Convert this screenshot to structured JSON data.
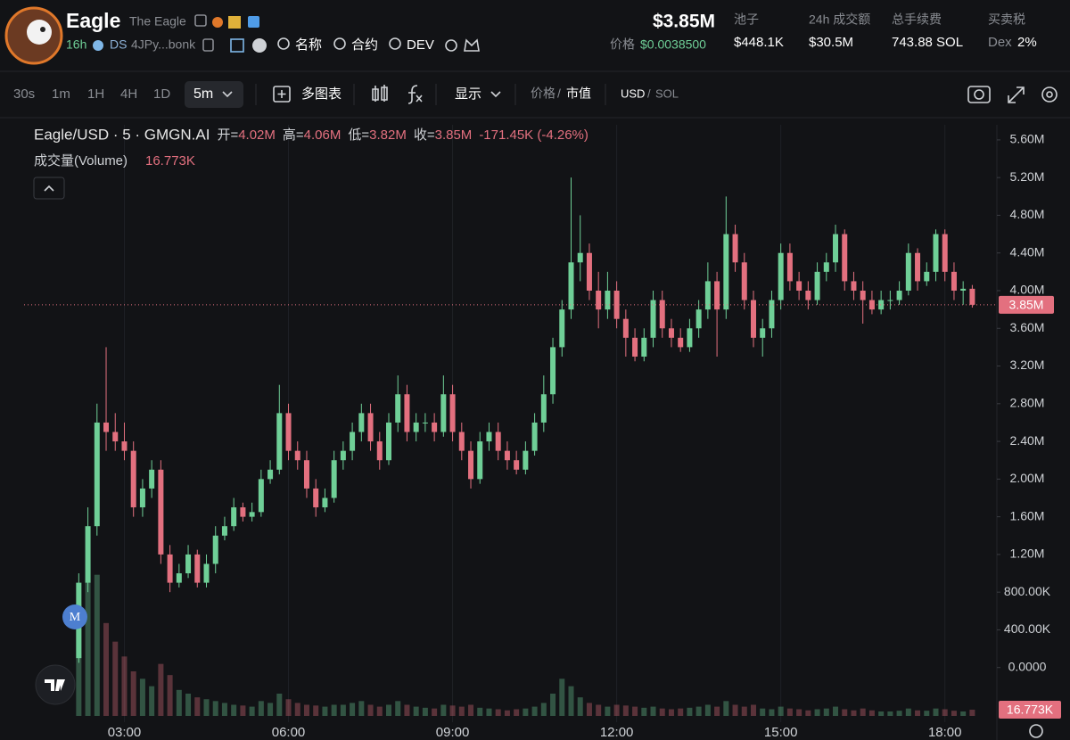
{
  "header": {
    "name": "Eagle",
    "full_name": "The Eagle",
    "age": "16h",
    "dex": "DS",
    "address": "4JPy...bonk",
    "links": [
      "名称",
      "合约",
      "DEV"
    ],
    "market_cap": "$3.85M",
    "price_label": "价格",
    "price_value": "$0.0038500",
    "stats": [
      {
        "label": "池子",
        "value": "$448.1K"
      },
      {
        "label": "24h 成交额",
        "value": "$30.5M"
      },
      {
        "label": "总手续费",
        "value": "743.88 SOL"
      },
      {
        "label": "买卖税",
        "prefix": "Dex",
        "value": "2%"
      }
    ]
  },
  "toolbar": {
    "intervals": [
      "30s",
      "1m",
      "1H",
      "4H",
      "1D"
    ],
    "active_interval": "5m",
    "multi_chart": "多图表",
    "display": "显示",
    "price_toggle": [
      "价格",
      "市值"
    ],
    "currency_toggle": [
      "USD",
      "SOL"
    ],
    "separator": "/"
  },
  "chart_data": {
    "type": "candlestick",
    "symbol": "Eagle/USD · 5 · GMGN.AI",
    "legend": [
      {
        "label": "开=",
        "value": "4.02M"
      },
      {
        "label": "高=",
        "value": "4.06M"
      },
      {
        "label": "低=",
        "value": "3.82M"
      },
      {
        "label": "收=",
        "value": "3.85M"
      }
    ],
    "change": "-171.45K (-4.26%)",
    "volume_title": "成交量(Volume)",
    "volume_value_label": "16.773K",
    "price_badge": "3.85M",
    "marker": "M",
    "colors": {
      "up": "#6fcf97",
      "down": "#e3707f"
    },
    "xgrid": true,
    "xlim": [
      70,
      1137
    ],
    "xticks": [
      {
        "value": 180,
        "label": "03:00"
      },
      {
        "value": 360,
        "label": "06:00"
      },
      {
        "value": 540,
        "label": "09:00"
      },
      {
        "value": 720,
        "label": "12:00"
      },
      {
        "value": 900,
        "label": "15:00"
      },
      {
        "value": 1080,
        "label": "18:00"
      }
    ],
    "ylim": [
      -0.58,
      5.76
    ],
    "yticks": [
      {
        "value": 0,
        "label": "0.0000"
      },
      {
        "value": 0.4,
        "label": "400.00K"
      },
      {
        "value": 0.8,
        "label": "800.00K"
      },
      {
        "value": 1.2,
        "label": "1.20M"
      },
      {
        "value": 1.6,
        "label": "1.60M"
      },
      {
        "value": 2.0,
        "label": "2.00M"
      },
      {
        "value": 2.4,
        "label": "2.40M"
      },
      {
        "value": 2.8,
        "label": "2.80M"
      },
      {
        "value": 3.2,
        "label": "3.20M"
      },
      {
        "value": 3.6,
        "label": "3.60M"
      },
      {
        "value": 4.0,
        "label": "4.00M"
      },
      {
        "value": 4.4,
        "label": "4.40M"
      },
      {
        "value": 4.8,
        "label": "4.80M"
      },
      {
        "value": 5.2,
        "label": "5.20M"
      },
      {
        "value": 5.6,
        "label": "5.60M"
      }
    ],
    "y2lim": [
      0,
      600
    ],
    "x": [
      130,
      140,
      150,
      160,
      170,
      180,
      190,
      200,
      210,
      220,
      230,
      240,
      250,
      260,
      270,
      280,
      290,
      300,
      310,
      320,
      330,
      340,
      350,
      360,
      370,
      380,
      390,
      400,
      410,
      420,
      430,
      440,
      450,
      460,
      470,
      480,
      490,
      500,
      510,
      520,
      530,
      540,
      550,
      560,
      570,
      580,
      590,
      600,
      610,
      620,
      630,
      640,
      650,
      660,
      670,
      680,
      690,
      700,
      710,
      720,
      730,
      740,
      750,
      760,
      770,
      780,
      790,
      800,
      810,
      820,
      830,
      840,
      850,
      860,
      870,
      880,
      890,
      900,
      910,
      920,
      930,
      940,
      950,
      960,
      970,
      980,
      990,
      1000,
      1010,
      1020,
      1030,
      1040,
      1050,
      1060,
      1070,
      1080,
      1090,
      1100,
      1110
    ],
    "open": [
      0.1,
      0.9,
      1.5,
      2.6,
      2.5,
      2.4,
      2.3,
      1.7,
      1.9,
      2.1,
      1.2,
      0.9,
      1.0,
      1.2,
      0.9,
      1.1,
      1.4,
      1.5,
      1.7,
      1.6,
      1.65,
      2.0,
      2.1,
      2.7,
      2.3,
      2.2,
      1.9,
      1.7,
      1.8,
      2.2,
      2.3,
      2.5,
      2.7,
      2.4,
      2.2,
      2.6,
      2.9,
      2.5,
      2.6,
      2.6,
      2.5,
      2.9,
      2.5,
      2.3,
      2.0,
      2.4,
      2.5,
      2.3,
      2.2,
      2.1,
      2.3,
      2.6,
      2.9,
      3.4,
      3.8,
      4.3,
      4.4,
      4.0,
      3.8,
      4.0,
      3.7,
      3.5,
      3.3,
      3.5,
      3.9,
      3.6,
      3.5,
      3.4,
      3.6,
      3.8,
      4.1,
      3.8,
      4.6,
      4.3,
      3.9,
      3.5,
      3.6,
      3.9,
      4.4,
      4.1,
      4.0,
      3.9,
      4.2,
      4.3,
      4.6,
      4.1,
      4.0,
      3.9,
      3.8,
      3.9,
      3.9,
      4.0,
      4.4,
      4.1,
      4.2,
      4.6,
      4.2,
      4.0,
      4.02
    ],
    "high": [
      1.0,
      1.7,
      2.8,
      3.4,
      2.7,
      2.6,
      2.4,
      2.0,
      2.2,
      2.2,
      1.3,
      1.1,
      1.3,
      1.25,
      1.2,
      1.5,
      1.6,
      1.8,
      1.75,
      1.75,
      2.1,
      2.2,
      3.0,
      2.8,
      2.4,
      2.3,
      2.0,
      1.9,
      2.3,
      2.4,
      2.6,
      2.8,
      2.8,
      2.5,
      2.7,
      3.1,
      3.0,
      2.7,
      2.7,
      2.7,
      3.1,
      3.0,
      2.6,
      2.4,
      2.5,
      2.6,
      2.6,
      2.4,
      2.3,
      2.4,
      2.7,
      3.1,
      3.5,
      3.9,
      5.2,
      4.8,
      4.5,
      4.2,
      4.2,
      4.1,
      3.8,
      3.6,
      3.6,
      4.0,
      4.0,
      3.7,
      3.6,
      3.7,
      3.9,
      4.3,
      4.2,
      5.0,
      4.7,
      4.4,
      4.0,
      3.7,
      4.0,
      4.5,
      4.5,
      4.2,
      4.1,
      4.3,
      4.4,
      4.7,
      4.65,
      4.2,
      4.1,
      4.0,
      4.0,
      4.0,
      4.1,
      4.5,
      4.45,
      4.3,
      4.65,
      4.65,
      4.3,
      4.1,
      4.06
    ],
    "low": [
      0.05,
      0.8,
      1.4,
      2.3,
      2.3,
      2.2,
      1.6,
      1.6,
      1.8,
      1.1,
      0.8,
      0.85,
      0.95,
      0.85,
      0.85,
      1.0,
      1.35,
      1.45,
      1.55,
      1.55,
      1.6,
      1.95,
      2.05,
      2.2,
      2.1,
      1.8,
      1.6,
      1.65,
      1.75,
      2.1,
      2.2,
      2.4,
      2.3,
      2.1,
      2.15,
      2.5,
      2.4,
      2.4,
      2.5,
      2.4,
      2.45,
      2.4,
      2.2,
      1.9,
      1.95,
      2.3,
      2.2,
      2.1,
      2.05,
      2.05,
      2.25,
      2.5,
      2.8,
      3.3,
      3.7,
      4.1,
      3.9,
      3.6,
      3.7,
      3.6,
      3.3,
      3.25,
      3.25,
      3.4,
      3.5,
      3.4,
      3.35,
      3.35,
      3.5,
      3.7,
      3.3,
      3.7,
      4.2,
      3.8,
      3.4,
      3.3,
      3.5,
      3.8,
      4.0,
      3.9,
      3.8,
      3.85,
      4.1,
      4.2,
      4.0,
      3.9,
      3.65,
      3.75,
      3.75,
      3.8,
      3.85,
      3.95,
      4.0,
      4.05,
      4.1,
      4.1,
      3.9,
      3.85,
      3.82
    ],
    "close": [
      0.9,
      1.5,
      2.6,
      2.5,
      2.4,
      2.3,
      1.7,
      1.9,
      2.1,
      1.2,
      0.9,
      1.0,
      1.2,
      0.9,
      1.1,
      1.4,
      1.5,
      1.7,
      1.6,
      1.65,
      2.0,
      2.1,
      2.7,
      2.3,
      2.2,
      1.9,
      1.7,
      1.8,
      2.2,
      2.3,
      2.5,
      2.7,
      2.4,
      2.2,
      2.6,
      2.9,
      2.5,
      2.6,
      2.6,
      2.5,
      2.9,
      2.5,
      2.3,
      2.0,
      2.4,
      2.5,
      2.3,
      2.2,
      2.1,
      2.3,
      2.6,
      2.9,
      3.4,
      3.8,
      4.3,
      4.4,
      4.0,
      3.8,
      4.0,
      3.7,
      3.5,
      3.3,
      3.5,
      3.9,
      3.6,
      3.5,
      3.4,
      3.6,
      3.8,
      4.1,
      3.8,
      4.6,
      4.3,
      3.9,
      3.5,
      3.6,
      3.9,
      4.4,
      4.1,
      4.0,
      3.9,
      4.2,
      4.3,
      4.6,
      4.1,
      4.0,
      3.9,
      3.8,
      3.9,
      3.9,
      4.0,
      4.4,
      4.1,
      4.2,
      4.6,
      4.2,
      4.0,
      4.02,
      3.85
    ],
    "volume": [
      300,
      420,
      380,
      250,
      200,
      160,
      120,
      100,
      80,
      140,
      110,
      70,
      60,
      50,
      45,
      40,
      35,
      30,
      28,
      25,
      40,
      35,
      60,
      45,
      35,
      30,
      28,
      25,
      30,
      30,
      35,
      40,
      30,
      25,
      30,
      40,
      30,
      25,
      22,
      20,
      30,
      28,
      25,
      30,
      22,
      20,
      18,
      15,
      18,
      20,
      25,
      35,
      60,
      100,
      80,
      50,
      35,
      30,
      25,
      30,
      28,
      25,
      22,
      25,
      20,
      18,
      20,
      22,
      25,
      30,
      25,
      40,
      30,
      25,
      30,
      20,
      18,
      25,
      20,
      18,
      15,
      18,
      20,
      25,
      18,
      15,
      20,
      15,
      12,
      12,
      14,
      20,
      15,
      14,
      20,
      18,
      14,
      12,
      16.773
    ]
  }
}
